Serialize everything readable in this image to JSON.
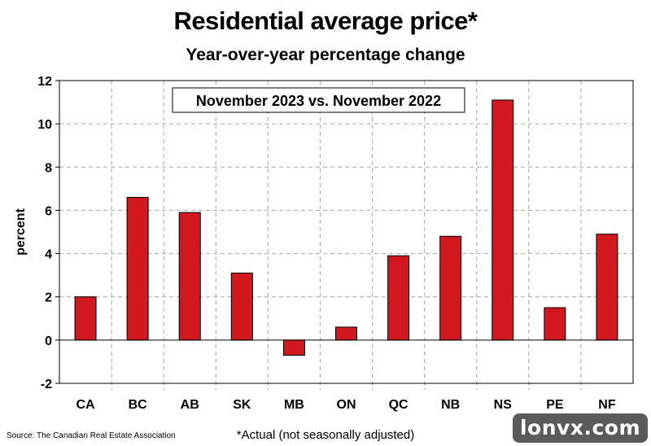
{
  "chart_data": {
    "type": "bar",
    "title": "Residential average price*",
    "subtitle": "Year-over-year percentage change",
    "annotation": "November 2023 vs. November 2022",
    "xlabel": "",
    "ylabel": "percent",
    "categories": [
      "CA",
      "BC",
      "AB",
      "SK",
      "MB",
      "ON",
      "QC",
      "NB",
      "NS",
      "PE",
      "NF"
    ],
    "values": [
      2.0,
      6.6,
      5.9,
      3.1,
      -0.7,
      0.6,
      3.9,
      4.8,
      11.1,
      1.5,
      4.9
    ],
    "ylim": [
      -2,
      12
    ],
    "yticks": [
      -2,
      0,
      2,
      4,
      6,
      8,
      10,
      12
    ],
    "grid": true,
    "bar_color": "#d0181e"
  },
  "footer": {
    "source": "Source: The Canadian Real Estate Association",
    "footnote": "*Actual (not seasonally adjusted)",
    "watermark": "lonvx.com"
  }
}
